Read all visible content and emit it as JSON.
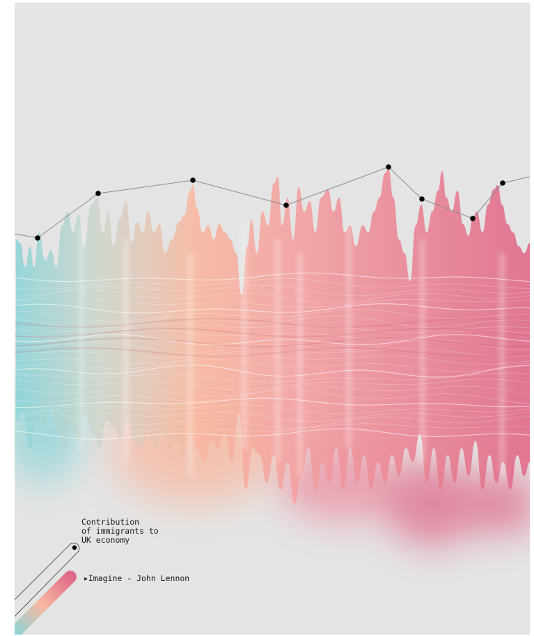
{
  "legend": {
    "line_label": [
      "Contribution",
      "of immigrants to",
      "UK economy"
    ],
    "song_label": "Imagine - John Lennon",
    "song_icon": "play-triangle-icon"
  },
  "colors": {
    "background": "#e4e4e4",
    "gradient_start": "#8fd4d8",
    "gradient_mid": "#f8b8a0",
    "gradient_end": "#e06a8a",
    "line": "#8a8a8a",
    "marker": "#000000"
  }
}
